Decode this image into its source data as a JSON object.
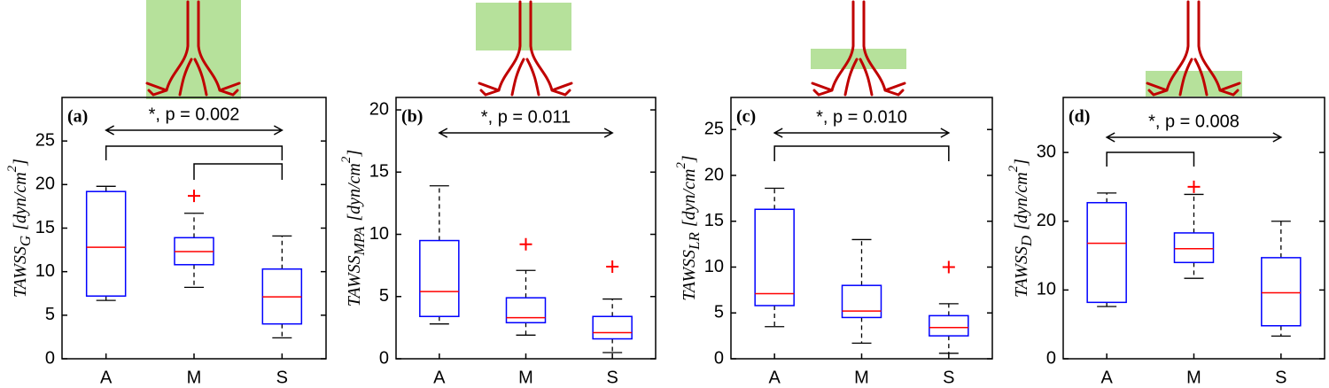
{
  "chart_data": [
    {
      "type": "box",
      "panel_label": "(a)",
      "annotation": "*, p = 0.002",
      "ylabel": {
        "main": "TAWSS",
        "sub": "G",
        "unit": "[dyn/cm",
        "sup": "2",
        "close": "]"
      },
      "categories": [
        "A",
        "M",
        "S"
      ],
      "boxes": [
        {
          "min": 6.7,
          "q1": 7.2,
          "median": 12.8,
          "q3": 19.2,
          "max": 19.8,
          "outliers": []
        },
        {
          "min": 8.2,
          "q1": 10.8,
          "median": 12.3,
          "q3": 13.9,
          "max": 16.7,
          "outliers": [
            18.7
          ]
        },
        {
          "min": 2.4,
          "q1": 4.0,
          "median": 7.1,
          "q3": 10.3,
          "max": 14.1,
          "outliers": []
        }
      ],
      "box_color": "#0000ff",
      "median_color": "#ff0000",
      "outlier_color": "#ff0000",
      "ylim": [
        0,
        30
      ],
      "yticks": [
        0,
        5,
        10,
        15,
        20,
        25
      ]
    },
    {
      "type": "box",
      "panel_label": "(b)",
      "annotation": "*, p = 0.011",
      "ylabel": {
        "main": "TAWSS",
        "sub": "MPA",
        "unit": "[dyn/cm",
        "sup": "2",
        "close": "]"
      },
      "categories": [
        "A",
        "M",
        "S"
      ],
      "boxes": [
        {
          "min": 2.8,
          "q1": 3.4,
          "median": 5.4,
          "q3": 9.5,
          "max": 13.9,
          "outliers": []
        },
        {
          "min": 1.9,
          "q1": 2.9,
          "median": 3.3,
          "q3": 4.9,
          "max": 7.1,
          "outliers": [
            9.2
          ]
        },
        {
          "min": 0.5,
          "q1": 1.6,
          "median": 2.1,
          "q3": 3.4,
          "max": 4.8,
          "outliers": [
            7.4
          ]
        }
      ],
      "box_color": "#0000ff",
      "median_color": "#ff0000",
      "outlier_color": "#ff0000",
      "ylim": [
        0,
        21
      ],
      "yticks": [
        0,
        5,
        10,
        15,
        20
      ]
    },
    {
      "type": "box",
      "panel_label": "(c)",
      "annotation": "*, p = 0.010",
      "ylabel": {
        "main": "TAWSS",
        "sub": "LR",
        "unit": "[dyn/cm",
        "sup": "2",
        "close": "]"
      },
      "categories": [
        "A",
        "M",
        "S"
      ],
      "boxes": [
        {
          "min": 3.5,
          "q1": 5.8,
          "median": 7.1,
          "q3": 16.3,
          "max": 18.6,
          "outliers": []
        },
        {
          "min": 1.7,
          "q1": 4.5,
          "median": 5.2,
          "q3": 8.0,
          "max": 13.0,
          "outliers": []
        },
        {
          "min": 0.6,
          "q1": 2.5,
          "median": 3.4,
          "q3": 4.7,
          "max": 6.0,
          "outliers": [
            10.0
          ]
        }
      ],
      "box_color": "#0000ff",
      "median_color": "#ff0000",
      "outlier_color": "#ff0000",
      "ylim": [
        0,
        28.5
      ],
      "yticks": [
        0,
        5,
        10,
        15,
        20,
        25
      ]
    },
    {
      "type": "box",
      "panel_label": "(d)",
      "annotation": "*, p = 0.008",
      "ylabel": {
        "main": "TAWSS",
        "sub": "D",
        "unit": "[dyn/cm",
        "sup": "2",
        "close": "]"
      },
      "categories": [
        "A",
        "M",
        "S"
      ],
      "boxes": [
        {
          "min": 7.6,
          "q1": 8.2,
          "median": 16.8,
          "q3": 22.7,
          "max": 24.1,
          "outliers": []
        },
        {
          "min": 11.7,
          "q1": 14.0,
          "median": 16.0,
          "q3": 18.3,
          "max": 23.9,
          "outliers": [
            25.0
          ]
        },
        {
          "min": 3.3,
          "q1": 4.8,
          "median": 9.6,
          "q3": 14.7,
          "max": 20.0,
          "outliers": []
        }
      ],
      "box_color": "#0000ff",
      "median_color": "#ff0000",
      "outlier_color": "#ff0000",
      "ylim": [
        0,
        38
      ],
      "yticks": [
        0,
        10,
        20,
        30
      ]
    }
  ]
}
